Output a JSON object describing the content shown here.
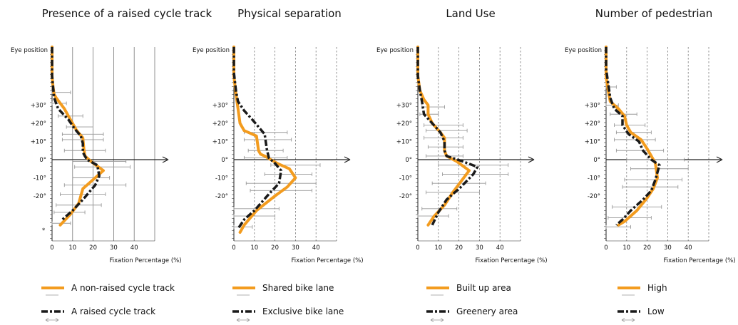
{
  "common": {
    "eye_label": "Eye position",
    "x_label": "Fixation Percentage (%)",
    "angle_labels": [
      "+30°",
      "+20°",
      "+10°",
      "0°",
      "-10°",
      "-20°"
    ],
    "x_ticks": [
      "0",
      "10",
      "20",
      "30",
      "40"
    ]
  },
  "colors": {
    "series_a": "#f39c1f",
    "series_b": "#1a1a1a",
    "grid": "#777777",
    "error_bar": "#999999",
    "axis": "#222222"
  },
  "chart_data": [
    {
      "type": "line",
      "title": "Presence of a raised cycle track",
      "xlabel": "Fixation Percentage (%)",
      "ylabel": "Eye position",
      "x_ticks": [
        0,
        10,
        20,
        30,
        40
      ],
      "grid_style": "solid",
      "star": "*",
      "series": [
        {
          "name": "A non-raised cycle track",
          "points": [
            [
              0,
              62
            ],
            [
              0,
              46
            ],
            [
              0.5,
              40
            ],
            [
              1,
              36
            ],
            [
              2,
              34
            ],
            [
              6,
              28
            ],
            [
              8,
              24
            ],
            [
              12,
              16
            ],
            [
              15,
              12
            ],
            [
              15.5,
              6
            ],
            [
              16,
              2
            ],
            [
              19,
              -1
            ],
            [
              25,
              -6
            ],
            [
              21,
              -10
            ],
            [
              15,
              -16
            ],
            [
              13,
              -24
            ],
            [
              9,
              -30
            ],
            [
              4,
              -36
            ]
          ]
        },
        {
          "name": "A raised cycle track",
          "points": [
            [
              0,
              62
            ],
            [
              0,
              46
            ],
            [
              0.5,
              40
            ],
            [
              1,
              34
            ],
            [
              3,
              28
            ],
            [
              8,
              22
            ],
            [
              11,
              17
            ],
            [
              14,
              13
            ],
            [
              15,
              9
            ],
            [
              15,
              4
            ],
            [
              17,
              0
            ],
            [
              22,
              -3
            ],
            [
              23,
              -9
            ],
            [
              21,
              -14
            ],
            [
              15,
              -22
            ],
            [
              10,
              -28
            ],
            [
              5,
              -33
            ]
          ]
        }
      ],
      "error_bars": [
        {
          "y": 37,
          "xmin": 0,
          "xmax": 9
        },
        {
          "y": 31,
          "xmin": 0,
          "xmax": 7
        },
        {
          "y": 24,
          "xmin": 3,
          "xmax": 15
        },
        {
          "y": 18,
          "xmin": 7,
          "xmax": 20
        },
        {
          "y": 14,
          "xmin": 5,
          "xmax": 25
        },
        {
          "y": 11,
          "xmin": 5,
          "xmax": 25
        },
        {
          "y": 5,
          "xmin": 6,
          "xmax": 26
        },
        {
          "y": -1,
          "xmin": 10,
          "xmax": 36
        },
        {
          "y": -4,
          "xmin": 11,
          "xmax": 38
        },
        {
          "y": -10,
          "xmin": 10,
          "xmax": 28
        },
        {
          "y": -14,
          "xmin": 6,
          "xmax": 36
        },
        {
          "y": -19,
          "xmin": 4,
          "xmax": 26
        },
        {
          "y": -25,
          "xmin": 2,
          "xmax": 24
        },
        {
          "y": -29,
          "xmin": 1,
          "xmax": 16
        },
        {
          "y": -35,
          "xmin": 0,
          "xmax": 9
        }
      ]
    },
    {
      "type": "line",
      "title": "Physical separation",
      "xlabel": "Fixation Percentage (%)",
      "ylabel": "Eye position",
      "x_ticks": [
        0,
        10,
        20,
        30,
        40
      ],
      "grid_style": "dashed",
      "series": [
        {
          "name": "Shared bike lane",
          "points": [
            [
              0,
              62
            ],
            [
              0,
              46
            ],
            [
              1,
              36
            ],
            [
              2,
              28
            ],
            [
              3,
              20
            ],
            [
              5,
              16
            ],
            [
              11,
              13
            ],
            [
              12,
              5
            ],
            [
              13,
              3
            ],
            [
              15,
              2
            ],
            [
              21,
              -2
            ],
            [
              27,
              -5
            ],
            [
              30,
              -10
            ],
            [
              26,
              -15
            ],
            [
              20,
              -20
            ],
            [
              11,
              -28
            ],
            [
              5,
              -36
            ],
            [
              3,
              -40
            ]
          ]
        },
        {
          "name": "Exclusive bike lane",
          "points": [
            [
              0,
              62
            ],
            [
              0,
              48
            ],
            [
              1,
              38
            ],
            [
              2,
              32
            ],
            [
              5,
              27
            ],
            [
              9,
              22
            ],
            [
              12,
              18
            ],
            [
              15,
              14
            ],
            [
              16,
              6
            ],
            [
              17,
              1
            ],
            [
              20,
              -2
            ],
            [
              23,
              -6
            ],
            [
              22,
              -13
            ],
            [
              17,
              -19
            ],
            [
              10,
              -28
            ],
            [
              5,
              -33
            ],
            [
              2,
              -38
            ]
          ]
        }
      ],
      "error_bars": [
        {
          "y": 15,
          "xmin": 5,
          "xmax": 26
        },
        {
          "y": 11,
          "xmin": 5,
          "xmax": 28
        },
        {
          "y": 5,
          "xmin": 7,
          "xmax": 24
        },
        {
          "y": 1,
          "xmin": 5,
          "xmax": 26
        },
        {
          "y": -3,
          "xmin": 18,
          "xmax": 42
        },
        {
          "y": -8,
          "xmin": 15,
          "xmax": 38
        },
        {
          "y": -13,
          "xmin": 6,
          "xmax": 40
        },
        {
          "y": -17,
          "xmin": 8,
          "xmax": 38
        },
        {
          "y": -27,
          "xmin": 0,
          "xmax": 22
        },
        {
          "y": -31,
          "xmin": 0,
          "xmax": 20
        },
        {
          "y": -37,
          "xmin": 0,
          "xmax": 9
        }
      ]
    },
    {
      "type": "line",
      "title": "Land Use",
      "xlabel": "Fixation Percentage (%)",
      "ylabel": "Eye position",
      "x_ticks": [
        0,
        10,
        20,
        30,
        40
      ],
      "grid_style": "dashed",
      "series": [
        {
          "name": "Built up area",
          "points": [
            [
              0,
              62
            ],
            [
              0,
              46
            ],
            [
              1,
              38
            ],
            [
              3,
              33
            ],
            [
              5,
              30
            ],
            [
              5,
              25
            ],
            [
              7,
              20
            ],
            [
              11,
              15
            ],
            [
              13,
              12
            ],
            [
              13,
              5
            ],
            [
              14,
              2
            ],
            [
              19,
              -1
            ],
            [
              25,
              -6
            ],
            [
              21,
              -12
            ],
            [
              17,
              -18
            ],
            [
              13,
              -25
            ],
            [
              8,
              -31
            ],
            [
              5,
              -36
            ]
          ]
        },
        {
          "name": "Greenery area",
          "points": [
            [
              0,
              62
            ],
            [
              0,
              46
            ],
            [
              1,
              38
            ],
            [
              2,
              32
            ],
            [
              3,
              25
            ],
            [
              7,
              20
            ],
            [
              11,
              15
            ],
            [
              13,
              10
            ],
            [
              13,
              5
            ],
            [
              14,
              2
            ],
            [
              22,
              -1
            ],
            [
              29,
              -4
            ],
            [
              27,
              -8
            ],
            [
              21,
              -15
            ],
            [
              14,
              -22
            ],
            [
              10,
              -29
            ],
            [
              7,
              -36
            ]
          ]
        }
      ],
      "error_bars": [
        {
          "y": 29,
          "xmin": 2,
          "xmax": 13
        },
        {
          "y": 25,
          "xmin": 1,
          "xmax": 10
        },
        {
          "y": 19,
          "xmin": 3,
          "xmax": 22
        },
        {
          "y": 16,
          "xmin": 4,
          "xmax": 24
        },
        {
          "y": 12,
          "xmin": 3,
          "xmax": 22
        },
        {
          "y": 7,
          "xmin": 5,
          "xmax": 22
        },
        {
          "y": 2,
          "xmin": 4,
          "xmax": 22
        },
        {
          "y": -3,
          "xmin": 10,
          "xmax": 44
        },
        {
          "y": -8,
          "xmin": 12,
          "xmax": 44
        },
        {
          "y": -13,
          "xmin": 7,
          "xmax": 33
        },
        {
          "y": -18,
          "xmin": 4,
          "xmax": 30
        },
        {
          "y": -27,
          "xmin": 2,
          "xmax": 19
        },
        {
          "y": -31,
          "xmin": 0,
          "xmax": 15
        }
      ]
    },
    {
      "type": "line",
      "title": "Number of pedestrian",
      "xlabel": "Fixation Percentage (%)",
      "ylabel": "Eye position",
      "x_ticks": [
        0,
        10,
        20,
        30,
        40
      ],
      "grid_style": "dashed",
      "series": [
        {
          "name": "High",
          "points": [
            [
              0,
              62
            ],
            [
              0,
              46
            ],
            [
              1,
              38
            ],
            [
              2,
              32
            ],
            [
              6,
              28
            ],
            [
              9,
              24
            ],
            [
              10,
              19
            ],
            [
              12,
              15
            ],
            [
              17,
              11
            ],
            [
              20,
              6
            ],
            [
              22,
              2
            ],
            [
              24,
              -2
            ],
            [
              25,
              -10
            ],
            [
              23,
              -16
            ],
            [
              20,
              -21
            ],
            [
              15,
              -28
            ],
            [
              9,
              -34
            ],
            [
              6,
              -36
            ]
          ]
        },
        {
          "name": "Low",
          "points": [
            [
              0,
              62
            ],
            [
              0,
              50
            ],
            [
              1,
              42
            ],
            [
              2,
              34
            ],
            [
              4,
              28
            ],
            [
              8,
              24
            ],
            [
              8,
              19
            ],
            [
              11,
              14
            ],
            [
              16,
              10
            ],
            [
              18,
              5
            ],
            [
              22,
              0
            ],
            [
              26,
              -3
            ],
            [
              24,
              -11
            ],
            [
              22,
              -17
            ],
            [
              18,
              -22
            ],
            [
              12,
              -28
            ],
            [
              8,
              -33
            ],
            [
              5,
              -36
            ]
          ]
        }
      ],
      "error_bars": [
        {
          "y": 40,
          "xmin": 0,
          "xmax": 5
        },
        {
          "y": 30,
          "xmin": 0,
          "xmax": 6
        },
        {
          "y": 25,
          "xmin": 2,
          "xmax": 15
        },
        {
          "y": 19,
          "xmin": 4,
          "xmax": 19
        },
        {
          "y": 15,
          "xmin": 5,
          "xmax": 22
        },
        {
          "y": 11,
          "xmin": 4,
          "xmax": 24
        },
        {
          "y": 5,
          "xmin": 5,
          "xmax": 28
        },
        {
          "y": 0,
          "xmin": 10,
          "xmax": 38
        },
        {
          "y": -5,
          "xmin": 12,
          "xmax": 40
        },
        {
          "y": -11,
          "xmin": 9,
          "xmax": 37
        },
        {
          "y": -15,
          "xmin": 8,
          "xmax": 35
        },
        {
          "y": -26,
          "xmin": 3,
          "xmax": 27
        },
        {
          "y": -32,
          "xmin": 1,
          "xmax": 22
        },
        {
          "y": -37,
          "xmin": 0,
          "xmax": 12
        }
      ]
    }
  ]
}
